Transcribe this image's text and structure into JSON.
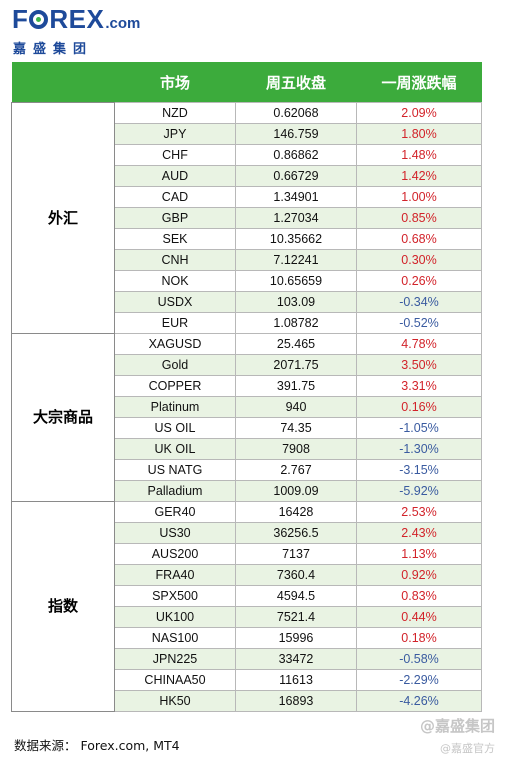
{
  "logo": {
    "letters_a": "F",
    "letters_b": "REX",
    "com": ".com",
    "subtitle": "嘉盛集团"
  },
  "table": {
    "headers": [
      "",
      "市场",
      "周五收盘",
      "一周涨跌幅"
    ],
    "groups": [
      {
        "name": "外汇",
        "rows": [
          {
            "market": "NZD",
            "close": "0.62068",
            "change": "2.09%",
            "dir": "up"
          },
          {
            "market": "JPY",
            "close": "146.759",
            "change": "1.80%",
            "dir": "up"
          },
          {
            "market": "CHF",
            "close": "0.86862",
            "change": "1.48%",
            "dir": "up"
          },
          {
            "market": "AUD",
            "close": "0.66729",
            "change": "1.42%",
            "dir": "up"
          },
          {
            "market": "CAD",
            "close": "1.34901",
            "change": "1.00%",
            "dir": "up"
          },
          {
            "market": "GBP",
            "close": "1.27034",
            "change": "0.85%",
            "dir": "up"
          },
          {
            "market": "SEK",
            "close": "10.35662",
            "change": "0.68%",
            "dir": "up"
          },
          {
            "market": "CNH",
            "close": "7.12241",
            "change": "0.30%",
            "dir": "up"
          },
          {
            "market": "NOK",
            "close": "10.65659",
            "change": "0.26%",
            "dir": "up"
          },
          {
            "market": "USDX",
            "close": "103.09",
            "change": "-0.34%",
            "dir": "down"
          },
          {
            "market": "EUR",
            "close": "1.08782",
            "change": "-0.52%",
            "dir": "down"
          }
        ]
      },
      {
        "name": "大宗商品",
        "rows": [
          {
            "market": "XAGUSD",
            "close": "25.465",
            "change": "4.78%",
            "dir": "up"
          },
          {
            "market": "Gold",
            "close": "2071.75",
            "change": "3.50%",
            "dir": "up"
          },
          {
            "market": "COPPER",
            "close": "391.75",
            "change": "3.31%",
            "dir": "up"
          },
          {
            "market": "Platinum",
            "close": "940",
            "change": "0.16%",
            "dir": "up"
          },
          {
            "market": "US OIL",
            "close": "74.35",
            "change": "-1.05%",
            "dir": "down"
          },
          {
            "market": "UK OIL",
            "close": "7908",
            "change": "-1.30%",
            "dir": "down"
          },
          {
            "market": "US NATG",
            "close": "2.767",
            "change": "-3.15%",
            "dir": "down"
          },
          {
            "market": "Palladium",
            "close": "1009.09",
            "change": "-5.92%",
            "dir": "down"
          }
        ]
      },
      {
        "name": "指数",
        "rows": [
          {
            "market": "GER40",
            "close": "16428",
            "change": "2.53%",
            "dir": "up"
          },
          {
            "market": "US30",
            "close": "36256.5",
            "change": "2.43%",
            "dir": "up"
          },
          {
            "market": "AUS200",
            "close": "7137",
            "change": "1.13%",
            "dir": "up"
          },
          {
            "market": "FRA40",
            "close": "7360.4",
            "change": "0.92%",
            "dir": "up"
          },
          {
            "market": "SPX500",
            "close": "4594.5",
            "change": "0.83%",
            "dir": "up"
          },
          {
            "market": "UK100",
            "close": "7521.4",
            "change": "0.44%",
            "dir": "up"
          },
          {
            "market": "NAS100",
            "close": "15996",
            "change": "0.18%",
            "dir": "up"
          },
          {
            "market": "JPN225",
            "close": "33472",
            "change": "-0.58%",
            "dir": "down"
          },
          {
            "market": "CHINAA50",
            "close": "11613",
            "change": "-2.29%",
            "dir": "down"
          },
          {
            "market": "HK50",
            "close": "16893",
            "change": "-4.26%",
            "dir": "down"
          }
        ]
      }
    ]
  },
  "source": "数据来源：  Forex.com, MT4",
  "watermark": {
    "line1": "@嘉盛集团",
    "line2": "@嘉盛官方"
  },
  "colors": {
    "header_green": "#3cab3c",
    "stripe_green": "#e9f3e3",
    "up_red": "#d2232a",
    "down_blue": "#3a5ba0",
    "brand_blue": "#1e4a9a"
  }
}
